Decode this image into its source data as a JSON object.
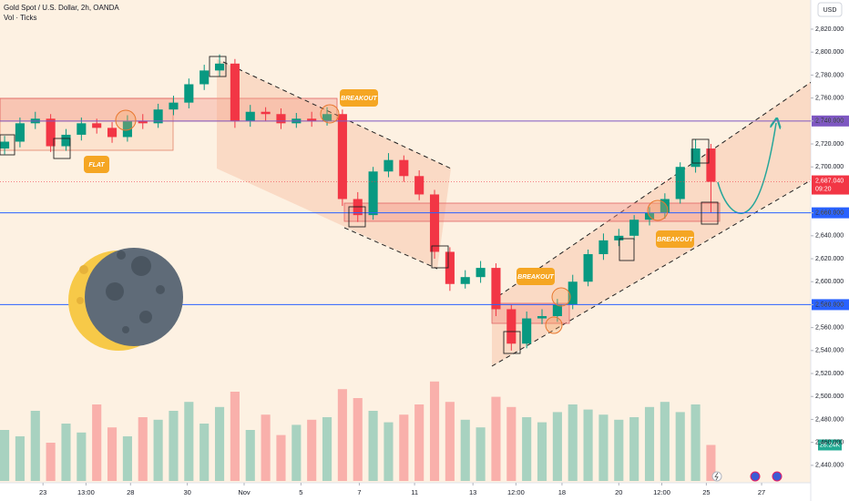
{
  "chart_data": {
    "type": "candlestick",
    "title": "Gold Spot / U.S. Dollar, 2h, OANDA",
    "subtitle": "Vol · Ticks",
    "currency": "USD",
    "up_color": "#089981",
    "down_color": "#f23645",
    "ylim": [
      2424.8,
      2845.4
    ],
    "yticks": [
      {
        "value": 2820,
        "label": "2,820.000"
      },
      {
        "value": 2800,
        "label": "2,800.000"
      },
      {
        "value": 2780,
        "label": "2,780.000"
      },
      {
        "value": 2760,
        "label": "2,760.000"
      },
      {
        "value": 2740,
        "label": "2,740.000"
      },
      {
        "value": 2720,
        "label": "2,720.000"
      },
      {
        "value": 2700,
        "label": "2,700.000"
      },
      {
        "value": 2660,
        "label": "2,660.000"
      },
      {
        "value": 2640,
        "label": "2,640.000"
      },
      {
        "value": 2620,
        "label": "2,620.000"
      },
      {
        "value": 2600,
        "label": "2,600.000"
      },
      {
        "value": 2580,
        "label": "2,580.000"
      },
      {
        "value": 2560,
        "label": "2,560.000"
      },
      {
        "value": 2540,
        "label": "2,540.000"
      },
      {
        "value": 2520,
        "label": "2,520.000"
      },
      {
        "value": 2500,
        "label": "2,500.000"
      },
      {
        "value": 2480,
        "label": "2,480.000"
      },
      {
        "value": 2460,
        "label": "2,460.000"
      },
      {
        "value": 2440,
        "label": "2,440.000"
      }
    ],
    "xlim": [
      -0.3,
      52.5
    ],
    "xticks": [
      {
        "value": 2.5,
        "label": "23"
      },
      {
        "value": 5.3,
        "label": "13:00"
      },
      {
        "value": 8.2,
        "label": "28"
      },
      {
        "value": 11.9,
        "label": "30"
      },
      {
        "value": 15.6,
        "label": "Nov"
      },
      {
        "value": 19.3,
        "label": "5"
      },
      {
        "value": 23.1,
        "label": "7"
      },
      {
        "value": 26.7,
        "label": "11"
      },
      {
        "value": 30.5,
        "label": "13"
      },
      {
        "value": 33.3,
        "label": "12:00"
      },
      {
        "value": 36.3,
        "label": "18"
      },
      {
        "value": 40.0,
        "label": "20"
      },
      {
        "value": 42.8,
        "label": "12:00"
      },
      {
        "value": 45.7,
        "label": "25"
      },
      {
        "value": 49.3,
        "label": "27"
      }
    ],
    "open": [
      2716,
      2722,
      2738,
      2742,
      2718,
      2728,
      2738,
      2734,
      2726,
      2740,
      2738,
      2750,
      2756,
      2772,
      2784,
      2790,
      2740,
      2748,
      2746,
      2738,
      2742,
      2740,
      2746,
      2672,
      2658,
      2696,
      2706,
      2692,
      2676,
      2626,
      2598,
      2604,
      2612,
      2576,
      2546,
      2568,
      2570,
      2580,
      2600,
      2624,
      2636,
      2640,
      2654,
      2660,
      2672,
      2700,
      2716
    ],
    "high": [
      2727,
      2743,
      2748,
      2746,
      2733,
      2743,
      2742,
      2739,
      2745,
      2746,
      2755,
      2762,
      2777,
      2789,
      2798,
      2794,
      2754,
      2752,
      2751,
      2747,
      2748,
      2752,
      2750,
      2678,
      2700,
      2712,
      2710,
      2697,
      2680,
      2630,
      2610,
      2618,
      2616,
      2580,
      2574,
      2576,
      2585,
      2606,
      2628,
      2642,
      2646,
      2658,
      2665,
      2677,
      2704,
      2724,
      2720
    ],
    "low": [
      2711,
      2717,
      2733,
      2713,
      2714,
      2723,
      2729,
      2721,
      2722,
      2733,
      2734,
      2745,
      2751,
      2767,
      2779,
      2734,
      2735,
      2740,
      2733,
      2734,
      2735,
      2736,
      2666,
      2652,
      2654,
      2691,
      2687,
      2671,
      2620,
      2592,
      2594,
      2599,
      2570,
      2540,
      2542,
      2563,
      2565,
      2576,
      2596,
      2619,
      2631,
      2636,
      2649,
      2655,
      2668,
      2695,
      2660
    ],
    "close": [
      2722,
      2738,
      2742,
      2718,
      2728,
      2738,
      2734,
      2726,
      2740,
      2738,
      2750,
      2756,
      2772,
      2784,
      2790,
      2740,
      2748,
      2746,
      2738,
      2742,
      2740,
      2746,
      2672,
      2658,
      2696,
      2706,
      2692,
      2676,
      2626,
      2598,
      2604,
      2612,
      2576,
      2546,
      2568,
      2570,
      2580,
      2600,
      2624,
      2636,
      2640,
      2654,
      2660,
      2672,
      2700,
      2716,
      2687
    ],
    "volume": {
      "values": [
        40,
        35,
        55,
        30,
        45,
        38,
        60,
        42,
        35,
        50,
        48,
        55,
        62,
        45,
        58,
        70,
        40,
        52,
        36,
        44,
        48,
        50,
        72,
        65,
        55,
        46,
        52,
        60,
        78,
        62,
        48,
        42,
        66,
        58,
        50,
        46,
        54,
        60,
        56,
        52,
        48,
        50,
        58,
        62,
        54,
        60,
        28.24
      ],
      "ylim": [
        0,
        100
      ],
      "last_label": "28.24K",
      "label_color": "#22ab94"
    },
    "price_lines": [
      {
        "value": 2740,
        "label": "2,740.000",
        "color": "#7e57c2"
      },
      {
        "value": 2660,
        "label": "2,660.000",
        "color": "#2962ff"
      },
      {
        "value": 2580,
        "label": "2,580.000",
        "color": "#2962ff"
      }
    ],
    "last_price": {
      "value": 2687.04,
      "label": "2,687.040",
      "countdown": "09:20",
      "color": "#f23645"
    },
    "annotations": [
      "BREAKOUT",
      "FLAT",
      "BREAKOUT",
      "BREAKOUT"
    ]
  }
}
